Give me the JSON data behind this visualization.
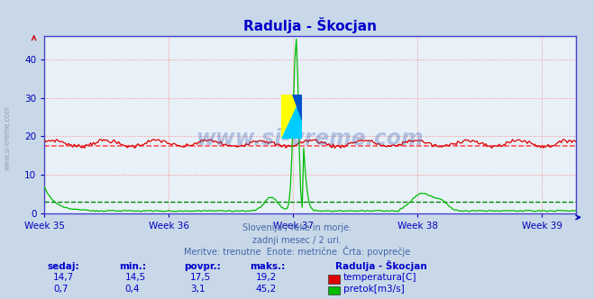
{
  "title": "Radulja - Škocjan",
  "title_color": "#0000cc",
  "bg_color": "#c8d8e8",
  "plot_bg_color": "#e8f0f8",
  "grid_color": "#ff8888",
  "axis_color": "#0000bb",
  "border_color": "#4444cc",
  "watermark_text": "www.si-vreme.com",
  "watermark_color": "#3355aa",
  "subtitle_lines": [
    "Slovenija / reke in morje.",
    "zadnji mesec / 2 uri.",
    "Meritve: trenutne  Enote: metrične  Črta: povprečje"
  ],
  "xlabel_weeks": [
    "Week 35",
    "Week 36",
    "Week 37",
    "Week 38",
    "Week 39"
  ],
  "ylim": [
    0,
    46
  ],
  "yticks": [
    0,
    10,
    20,
    30,
    40
  ],
  "temp_avg": 17.5,
  "flow_avg": 3.1,
  "temp_color": "#dd0000",
  "flow_color": "#00bb00",
  "temp_avg_color": "#ff4444",
  "flow_avg_color": "#008800",
  "legend_title": "Radulja - Škocjan",
  "table_headers": [
    "sedaj:",
    "min.:",
    "povpr.:",
    "maks.:"
  ],
  "table_temp": [
    "14,7",
    "14,5",
    "17,5",
    "19,2"
  ],
  "table_flow": [
    "0,7",
    "0,4",
    "3,1",
    "45,2"
  ],
  "table_color": "#0000cc",
  "legend_temp_label": "temperatura[C]",
  "legend_flow_label": "pretok[m3/s]",
  "n_points": 360,
  "week_x": [
    0,
    84,
    168,
    252,
    336
  ]
}
